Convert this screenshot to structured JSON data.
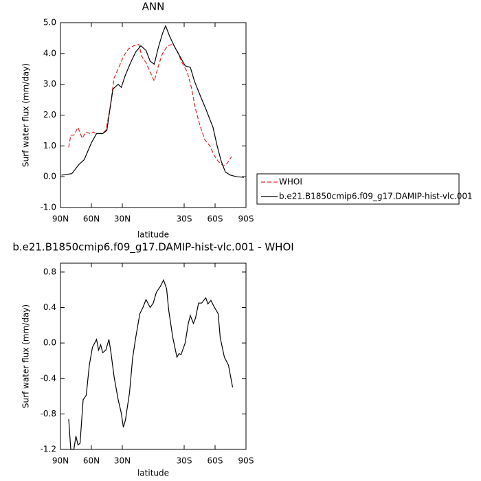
{
  "chart_data": [
    {
      "type": "line",
      "title": "ANN",
      "y_label": "Surf water flux (mm/day)",
      "x_label": "latitude",
      "xlim": [
        90,
        -90
      ],
      "xticks": [
        {
          "value": 90,
          "label": "90N"
        },
        {
          "value": 60,
          "label": "60N"
        },
        {
          "value": 30,
          "label": "30N"
        },
        {
          "value": -30,
          "label": "30S"
        },
        {
          "value": -60,
          "label": "60S"
        },
        {
          "value": -90,
          "label": "90S"
        }
      ],
      "ylim": [
        -1,
        5
      ],
      "yticks": [
        {
          "value": -1,
          "label": "-1.0"
        },
        {
          "value": 0,
          "label": "0.0"
        },
        {
          "value": 1,
          "label": "1.0"
        },
        {
          "value": 2,
          "label": "2.0"
        },
        {
          "value": 3,
          "label": "3.0"
        },
        {
          "value": 4,
          "label": "4.0"
        },
        {
          "value": 5,
          "label": "5.0"
        }
      ],
      "legend": "outside-right",
      "series": [
        {
          "name": "WHOI",
          "color": "#e8231f",
          "dash": true,
          "x": [
            82,
            80,
            77,
            73,
            69,
            65,
            61,
            58,
            55,
            50,
            46,
            42,
            38,
            34,
            29,
            24,
            19,
            14,
            11,
            7,
            3,
            -1,
            -5,
            -9,
            -14,
            -19,
            -23,
            -28,
            -33,
            -37,
            -41,
            -45,
            -50,
            -55,
            -59,
            -63,
            -68,
            -71,
            -76
          ],
          "values": [
            0.95,
            1.35,
            1.35,
            1.6,
            1.25,
            1.45,
            1.4,
            1.45,
            1.4,
            1.4,
            1.5,
            2.2,
            3.2,
            3.5,
            3.9,
            4.15,
            4.25,
            4.3,
            3.9,
            3.7,
            3.4,
            3.1,
            3.6,
            4.0,
            4.25,
            4.3,
            4.1,
            3.7,
            3.4,
            2.9,
            2.2,
            1.7,
            1.2,
            1.0,
            0.7,
            0.5,
            0.35,
            0.4,
            0.65
          ]
        },
        {
          "name": "b.e21.B1850cmip6.f09_g17.DAMIP-hist-vlc.001",
          "color": "#000000",
          "dash": false,
          "x": [
            89,
            79,
            72,
            67,
            60,
            55,
            49,
            45,
            42,
            39,
            34,
            31,
            27,
            22,
            17,
            12,
            7,
            3,
            -1,
            -5,
            -9,
            -12,
            -16,
            -21,
            -26,
            -31,
            -36,
            -40,
            -46,
            -51,
            -58,
            -62,
            -66,
            -70,
            -75,
            -81,
            -88
          ],
          "values": [
            0.05,
            0.1,
            0.4,
            0.55,
            1.1,
            1.4,
            1.4,
            1.5,
            2.2,
            2.85,
            3.0,
            2.9,
            3.3,
            3.7,
            4.05,
            4.25,
            4.1,
            3.75,
            3.65,
            4.2,
            4.65,
            4.9,
            4.55,
            4.2,
            3.9,
            3.6,
            3.55,
            3.1,
            2.6,
            2.2,
            1.6,
            1.0,
            0.5,
            0.15,
            0.05,
            0.0,
            -0.02
          ]
        }
      ]
    },
    {
      "type": "line",
      "title": "b.e21.B1850cmip6.f09_g17.DAMIP-hist-vlc.001 - WHOI",
      "y_label": "Surf water flux (mm/day)",
      "x_label": "latitude",
      "xlim": [
        90,
        -90
      ],
      "xticks": [
        {
          "value": 90,
          "label": "90N"
        },
        {
          "value": 60,
          "label": "60N"
        },
        {
          "value": 30,
          "label": "30N"
        },
        {
          "value": -30,
          "label": "30S"
        },
        {
          "value": -60,
          "label": "60S"
        },
        {
          "value": -90,
          "label": "90S"
        }
      ],
      "ylim": [
        -1.2,
        0.9
      ],
      "yticks": [
        -1.2,
        -0.8,
        -0.4,
        {
          "value": 0,
          "label": "0.0"
        },
        0.4,
        0.8
      ],
      "series": [
        {
          "color": "#000000",
          "dash": false,
          "x": [
            82,
            80,
            77,
            75,
            73,
            71,
            68,
            65,
            62,
            59,
            55,
            53,
            51,
            49,
            46,
            43,
            41,
            38,
            34,
            31,
            29,
            27,
            23,
            20,
            17,
            13,
            10,
            7,
            3,
            0,
            -3,
            -7,
            -10,
            -13,
            -15,
            -19,
            -23,
            -25,
            -27,
            -31,
            -34,
            -36,
            -39,
            -41,
            -44,
            -47,
            -51,
            -53,
            -56,
            -59,
            -63,
            -65,
            -69,
            -73,
            -77
          ],
          "values": [
            -0.86,
            -1.2,
            -1.2,
            -1.05,
            -1.15,
            -1.13,
            -0.64,
            -0.59,
            -0.25,
            -0.05,
            0.04,
            -0.08,
            -0.02,
            -0.11,
            -0.08,
            0.04,
            -0.11,
            -0.38,
            -0.64,
            -0.79,
            -0.95,
            -0.87,
            -0.56,
            -0.17,
            0.06,
            0.33,
            0.4,
            0.49,
            0.4,
            0.45,
            0.57,
            0.64,
            0.71,
            0.61,
            0.37,
            0.06,
            -0.16,
            -0.12,
            -0.13,
            0.0,
            0.22,
            0.31,
            0.22,
            0.28,
            0.45,
            0.45,
            0.51,
            0.44,
            0.48,
            0.41,
            0.33,
            0.06,
            -0.16,
            -0.25,
            -0.5
          ]
        }
      ]
    }
  ]
}
